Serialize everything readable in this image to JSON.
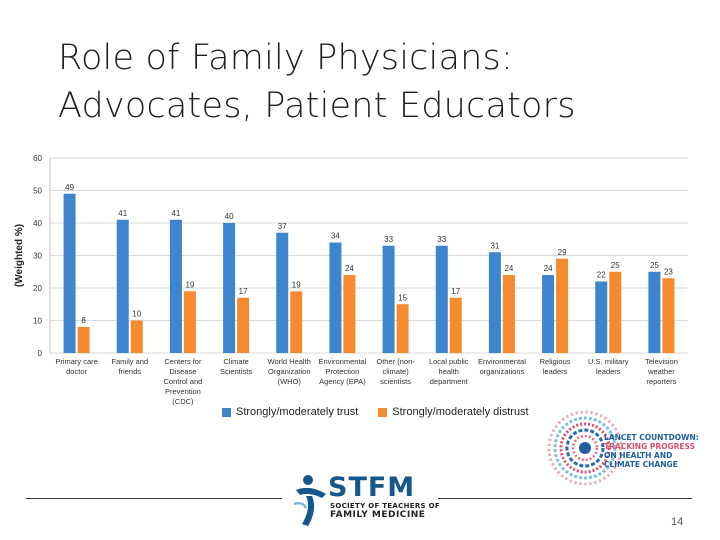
{
  "slide": {
    "title_line1": "Role of Family Physicians:",
    "title_line2": "Advocates, Patient Educators",
    "page_number": "14"
  },
  "colors": {
    "trust": "#3d85cc",
    "distrust": "#f58b2e",
    "grid": "#d9d9d9",
    "axis_text": "#333333"
  },
  "chart_data": {
    "type": "bar",
    "title": "",
    "xlabel": "",
    "ylabel": "(Weighted %)",
    "ylim": [
      0,
      60
    ],
    "yticks": [
      0,
      10,
      20,
      30,
      40,
      50,
      60
    ],
    "grid": true,
    "legend_position": "bottom",
    "categories": [
      [
        "Primary care",
        "doctor"
      ],
      [
        "Family and",
        "friends"
      ],
      [
        "Centers for",
        "Disease",
        "Control and",
        "Prevention",
        "(CDC)"
      ],
      [
        "Climate",
        "Scientists"
      ],
      [
        "World Health",
        "Organization",
        "(WHO)"
      ],
      [
        "Environmental",
        "Protection",
        "Agency (EPA)"
      ],
      [
        "Other (non-",
        "climate)",
        "scientists"
      ],
      [
        "Local public",
        "health",
        "department"
      ],
      [
        "Environmental",
        "organizations"
      ],
      [
        "Religious",
        "leaders"
      ],
      [
        "U.S. military",
        "leaders"
      ],
      [
        "Television",
        "weather",
        "reporters"
      ]
    ],
    "series": [
      {
        "name": "Strongly/moderately trust",
        "values": [
          49,
          41,
          41,
          40,
          37,
          34,
          33,
          33,
          31,
          24,
          22,
          25
        ]
      },
      {
        "name": "Strongly/moderately distrust",
        "values": [
          8,
          10,
          19,
          17,
          19,
          24,
          15,
          17,
          24,
          29,
          25,
          23
        ]
      }
    ]
  },
  "logos": {
    "lancet_lines": [
      "LANCET COUNTDOWN:",
      "TRACKING PROGRESS",
      "ON HEALTH AND",
      "CLIMATE CHANGE"
    ],
    "stfm_wordmark": "STFM",
    "stfm_sub1": "SOCIETY OF TEACHERS OF",
    "stfm_sub2": "FAMILY MEDICINE"
  }
}
